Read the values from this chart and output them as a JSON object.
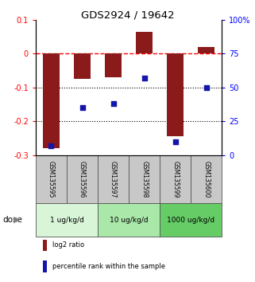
{
  "title": "GDS2924 / 19642",
  "samples": [
    "GSM135595",
    "GSM135596",
    "GSM135597",
    "GSM135598",
    "GSM135599",
    "GSM135600"
  ],
  "log2_ratio": [
    -0.28,
    -0.075,
    -0.07,
    0.065,
    -0.245,
    0.02
  ],
  "percentile_rank": [
    7,
    35,
    38,
    57,
    10,
    50
  ],
  "ylim": [
    -0.3,
    0.1
  ],
  "yticks_left": [
    -0.3,
    -0.2,
    -0.1,
    0.0,
    0.1
  ],
  "ytick_labels_left": [
    "-0.3",
    "-0.2",
    "-0.1",
    "0",
    "0.1"
  ],
  "yticks_right_pct": [
    0,
    25,
    50,
    75,
    100
  ],
  "bar_color": "#8B1A1A",
  "dot_color": "#1515aa",
  "dose_groups": [
    {
      "label": "1 ug/kg/d",
      "samples": [
        0,
        1
      ],
      "color": "#d8f5d8"
    },
    {
      "label": "10 ug/kg/d",
      "samples": [
        2,
        3
      ],
      "color": "#aae8aa"
    },
    {
      "label": "1000 ug/kg/d",
      "samples": [
        4,
        5
      ],
      "color": "#66cc66"
    }
  ],
  "sample_box_color": "#c8c8c8",
  "legend_items": [
    {
      "label": "log2 ratio",
      "color": "#8B1A1A"
    },
    {
      "label": "percentile rank within the sample",
      "color": "#1515aa"
    }
  ],
  "dose_label": "dose",
  "bar_width": 0.55
}
